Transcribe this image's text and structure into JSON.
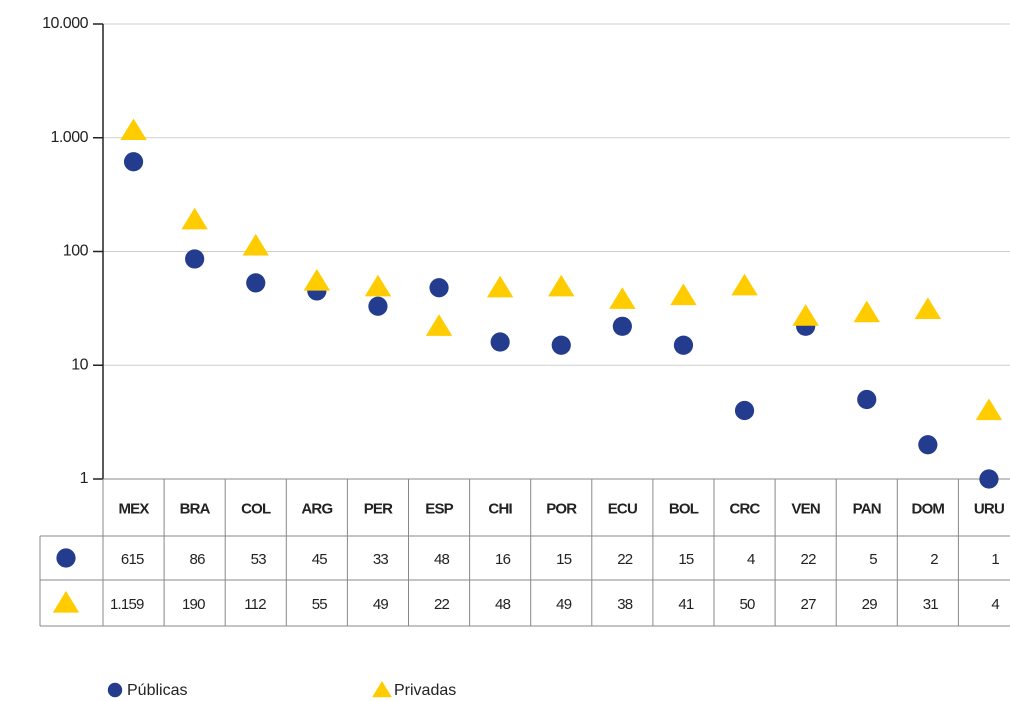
{
  "chart_data": {
    "type": "scatter",
    "categories": [
      "MEX",
      "BRA",
      "COL",
      "ARG",
      "PER",
      "ESP",
      "CHI",
      "POR",
      "ECU",
      "BOL",
      "CRC",
      "VEN",
      "PAN",
      "DOM",
      "URU"
    ],
    "series": [
      {
        "name": "Públicas",
        "color": "#233c8e",
        "marker": "circle",
        "values": [
          615,
          86,
          53,
          45,
          33,
          48,
          16,
          15,
          22,
          15,
          4,
          22,
          5,
          2,
          1
        ]
      },
      {
        "name": "Privadas",
        "color": "#ffcc00",
        "marker": "triangle",
        "values": [
          1159,
          190,
          112,
          55,
          49,
          22,
          48,
          49,
          38,
          41,
          50,
          27,
          29,
          31,
          4
        ],
        "value_labels": [
          "1.159",
          "190",
          "112",
          "55",
          "49",
          "22",
          "48",
          "49",
          "38",
          "41",
          "50",
          "27",
          "29",
          "31",
          "4"
        ]
      }
    ],
    "ylim": [
      1,
      10000
    ],
    "log_scale": true,
    "grid": true,
    "yticks": [
      1,
      10,
      100,
      {
        "value": 1000,
        "label": "1.000"
      },
      {
        "value": 10000,
        "label": "10.000"
      }
    ]
  }
}
